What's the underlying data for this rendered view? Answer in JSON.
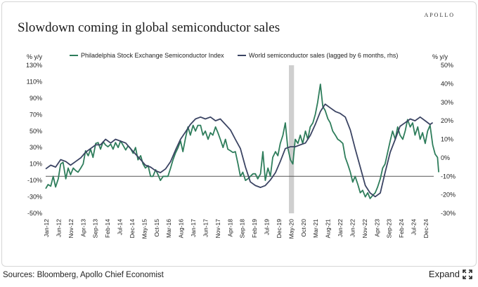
{
  "brand": "APOLLO",
  "source": "Sources: Bloomberg, Apollo Chief Economist",
  "expand_label": "Expand",
  "colors": {
    "sox": "#2e7d5b",
    "wss": "#3b4463",
    "zero_line": "#555555",
    "shade": "#cfcfcf",
    "grid_text": "#222222"
  },
  "chart_data": {
    "type": "line",
    "title": "Slowdown coming in global semiconductor sales",
    "left_axis": {
      "label": "% y/y",
      "min": -50,
      "max": 130,
      "ticks": [
        "130%",
        "110%",
        "90%",
        "70%",
        "50%",
        "30%",
        "10%",
        "-10%",
        "-30%",
        "-50%"
      ]
    },
    "right_axis": {
      "label": "% y/y",
      "min": -30,
      "max": 50,
      "ticks": [
        "50%",
        "40%",
        "30%",
        "20%",
        "10%",
        "0%",
        "-10%",
        "-20%",
        "-30%"
      ]
    },
    "x_ticks": [
      "Jan-12",
      "Jun-12",
      "Nov-12",
      "Apr-13",
      "Sep-13",
      "Feb-14",
      "Jul-14",
      "Dec-14",
      "May-15",
      "Oct-15",
      "Mar-16",
      "Aug-16",
      "Jan-17",
      "Jun-17",
      "Nov-17",
      "Apr-18",
      "Sep-18",
      "Feb-19",
      "Jul-19",
      "Dec-19",
      "May-20",
      "Oct-20",
      "Mar-21",
      "Aug-21",
      "Jan-22",
      "Jun-22",
      "Nov-22",
      "Apr-23",
      "Sep-23",
      "Feb-24",
      "Jul-24",
      "Dec-24"
    ],
    "x_range": [
      2012.0,
      2025.0
    ],
    "recession_shading": [
      2020.12,
      2020.29
    ],
    "series": [
      {
        "name": "Philadelphia Stock Exchange Semiconductor Index",
        "axis": "left",
        "points": [
          [
            2012.0,
            -20
          ],
          [
            2012.08,
            -15
          ],
          [
            2012.17,
            -17
          ],
          [
            2012.25,
            -5
          ],
          [
            2012.33,
            -18
          ],
          [
            2012.42,
            -8
          ],
          [
            2012.5,
            10
          ],
          [
            2012.58,
            12
          ],
          [
            2012.67,
            -8
          ],
          [
            2012.75,
            5
          ],
          [
            2012.83,
            -3
          ],
          [
            2012.92,
            5
          ],
          [
            2013.0,
            2
          ],
          [
            2013.08,
            0
          ],
          [
            2013.17,
            5
          ],
          [
            2013.25,
            10
          ],
          [
            2013.33,
            26
          ],
          [
            2013.42,
            20
          ],
          [
            2013.5,
            28
          ],
          [
            2013.58,
            18
          ],
          [
            2013.67,
            35
          ],
          [
            2013.75,
            36
          ],
          [
            2013.83,
            28
          ],
          [
            2013.92,
            37
          ],
          [
            2014.0,
            33
          ],
          [
            2014.08,
            31
          ],
          [
            2014.17,
            34
          ],
          [
            2014.25,
            28
          ],
          [
            2014.33,
            36
          ],
          [
            2014.42,
            30
          ],
          [
            2014.5,
            38
          ],
          [
            2014.58,
            33
          ],
          [
            2014.67,
            27
          ],
          [
            2014.75,
            32
          ],
          [
            2014.83,
            29
          ],
          [
            2014.92,
            23
          ],
          [
            2015.0,
            30
          ],
          [
            2015.08,
            15
          ],
          [
            2015.17,
            20
          ],
          [
            2015.25,
            10
          ],
          [
            2015.33,
            5
          ],
          [
            2015.42,
            8
          ],
          [
            2015.5,
            -5
          ],
          [
            2015.58,
            -5
          ],
          [
            2015.67,
            3
          ],
          [
            2015.75,
            -3
          ],
          [
            2015.83,
            -10
          ],
          [
            2015.92,
            -5
          ],
          [
            2016.0,
            -5
          ],
          [
            2016.08,
            -5
          ],
          [
            2016.17,
            5
          ],
          [
            2016.25,
            15
          ],
          [
            2016.33,
            23
          ],
          [
            2016.42,
            30
          ],
          [
            2016.5,
            38
          ],
          [
            2016.58,
            25
          ],
          [
            2016.67,
            42
          ],
          [
            2016.75,
            55
          ],
          [
            2016.83,
            45
          ],
          [
            2016.92,
            57
          ],
          [
            2017.0,
            50
          ],
          [
            2017.08,
            57
          ],
          [
            2017.17,
            57
          ],
          [
            2017.25,
            45
          ],
          [
            2017.33,
            50
          ],
          [
            2017.42,
            40
          ],
          [
            2017.5,
            48
          ],
          [
            2017.58,
            45
          ],
          [
            2017.67,
            55
          ],
          [
            2017.75,
            48
          ],
          [
            2017.83,
            40
          ],
          [
            2017.92,
            30
          ],
          [
            2018.0,
            40
          ],
          [
            2018.08,
            28
          ],
          [
            2018.17,
            26
          ],
          [
            2018.25,
            24
          ],
          [
            2018.33,
            25
          ],
          [
            2018.42,
            10
          ],
          [
            2018.5,
            -5
          ],
          [
            2018.58,
            0
          ],
          [
            2018.67,
            -10
          ],
          [
            2018.75,
            -8
          ],
          [
            2018.83,
            -5
          ],
          [
            2018.92,
            -2
          ],
          [
            2019.0,
            -2
          ],
          [
            2019.08,
            -8
          ],
          [
            2019.17,
            -2
          ],
          [
            2019.25,
            25
          ],
          [
            2019.33,
            -10
          ],
          [
            2019.42,
            5
          ],
          [
            2019.5,
            -5
          ],
          [
            2019.58,
            18
          ],
          [
            2019.67,
            25
          ],
          [
            2019.75,
            20
          ],
          [
            2019.83,
            35
          ],
          [
            2019.92,
            45
          ],
          [
            2020.0,
            60
          ],
          [
            2020.08,
            30
          ],
          [
            2020.17,
            15
          ],
          [
            2020.25,
            10
          ],
          [
            2020.33,
            40
          ],
          [
            2020.42,
            35
          ],
          [
            2020.5,
            45
          ],
          [
            2020.58,
            35
          ],
          [
            2020.67,
            50
          ],
          [
            2020.75,
            40
          ],
          [
            2020.83,
            55
          ],
          [
            2020.92,
            60
          ],
          [
            2021.0,
            70
          ],
          [
            2021.08,
            85
          ],
          [
            2021.17,
            107
          ],
          [
            2021.25,
            80
          ],
          [
            2021.33,
            75
          ],
          [
            2021.42,
            65
          ],
          [
            2021.5,
            60
          ],
          [
            2021.58,
            50
          ],
          [
            2021.67,
            45
          ],
          [
            2021.75,
            40
          ],
          [
            2021.83,
            38
          ],
          [
            2021.92,
            35
          ],
          [
            2022.0,
            18
          ],
          [
            2022.08,
            10
          ],
          [
            2022.17,
            0
          ],
          [
            2022.25,
            -12
          ],
          [
            2022.33,
            -5
          ],
          [
            2022.42,
            -15
          ],
          [
            2022.5,
            -25
          ],
          [
            2022.58,
            -22
          ],
          [
            2022.67,
            -30
          ],
          [
            2022.75,
            -25
          ],
          [
            2022.83,
            -32
          ],
          [
            2022.92,
            -28
          ],
          [
            2023.0,
            -25
          ],
          [
            2023.08,
            -18
          ],
          [
            2023.17,
            -8
          ],
          [
            2023.25,
            5
          ],
          [
            2023.33,
            10
          ],
          [
            2023.42,
            25
          ],
          [
            2023.5,
            38
          ],
          [
            2023.58,
            50
          ],
          [
            2023.67,
            40
          ],
          [
            2023.75,
            55
          ],
          [
            2023.83,
            45
          ],
          [
            2023.92,
            40
          ],
          [
            2024.0,
            50
          ],
          [
            2024.08,
            64
          ],
          [
            2024.17,
            55
          ],
          [
            2024.25,
            60
          ],
          [
            2024.33,
            45
          ],
          [
            2024.42,
            55
          ],
          [
            2024.5,
            40
          ],
          [
            2024.58,
            48
          ],
          [
            2024.67,
            35
          ],
          [
            2024.75,
            50
          ],
          [
            2024.83,
            57
          ],
          [
            2024.92,
            33
          ],
          [
            2025.0,
            22
          ],
          [
            2025.08,
            18
          ],
          [
            2025.12,
            0
          ]
        ]
      },
      {
        "name": "World semiconductor sales (lagged by 6 months, rhs)",
        "axis": "right",
        "points": [
          [
            2012.0,
            -6
          ],
          [
            2012.17,
            -4
          ],
          [
            2012.33,
            -5
          ],
          [
            2012.5,
            -1
          ],
          [
            2012.67,
            -2
          ],
          [
            2012.83,
            -4
          ],
          [
            2013.0,
            -2
          ],
          [
            2013.17,
            0
          ],
          [
            2013.33,
            3
          ],
          [
            2013.5,
            5
          ],
          [
            2013.67,
            7
          ],
          [
            2013.83,
            7
          ],
          [
            2014.0,
            10
          ],
          [
            2014.17,
            8
          ],
          [
            2014.33,
            10
          ],
          [
            2014.5,
            9
          ],
          [
            2014.67,
            8
          ],
          [
            2014.83,
            5
          ],
          [
            2015.0,
            2
          ],
          [
            2015.17,
            -1
          ],
          [
            2015.33,
            -4
          ],
          [
            2015.5,
            -5
          ],
          [
            2015.67,
            -7
          ],
          [
            2015.83,
            -8
          ],
          [
            2016.0,
            -6
          ],
          [
            2016.17,
            -2
          ],
          [
            2016.33,
            4
          ],
          [
            2016.5,
            10
          ],
          [
            2016.67,
            14
          ],
          [
            2016.83,
            18
          ],
          [
            2017.0,
            21
          ],
          [
            2017.17,
            22
          ],
          [
            2017.33,
            21
          ],
          [
            2017.5,
            22
          ],
          [
            2017.67,
            20
          ],
          [
            2017.83,
            21
          ],
          [
            2018.0,
            18
          ],
          [
            2018.17,
            15
          ],
          [
            2018.33,
            10
          ],
          [
            2018.5,
            5
          ],
          [
            2018.67,
            -5
          ],
          [
            2018.83,
            -13
          ],
          [
            2019.0,
            -15
          ],
          [
            2019.17,
            -16
          ],
          [
            2019.33,
            -15
          ],
          [
            2019.5,
            -12
          ],
          [
            2019.67,
            -8
          ],
          [
            2019.83,
            -2
          ],
          [
            2020.0,
            5
          ],
          [
            2020.17,
            6
          ],
          [
            2020.33,
            6
          ],
          [
            2020.5,
            7
          ],
          [
            2020.67,
            8
          ],
          [
            2020.83,
            12
          ],
          [
            2021.0,
            18
          ],
          [
            2021.17,
            25
          ],
          [
            2021.33,
            29
          ],
          [
            2021.5,
            27
          ],
          [
            2021.67,
            25
          ],
          [
            2021.83,
            24
          ],
          [
            2022.0,
            22
          ],
          [
            2022.17,
            15
          ],
          [
            2022.33,
            5
          ],
          [
            2022.5,
            -5
          ],
          [
            2022.67,
            -15
          ],
          [
            2022.83,
            -19
          ],
          [
            2023.0,
            -21
          ],
          [
            2023.17,
            -19
          ],
          [
            2023.33,
            -8
          ],
          [
            2023.5,
            3
          ],
          [
            2023.67,
            10
          ],
          [
            2023.83,
            17
          ],
          [
            2024.0,
            19
          ],
          [
            2024.17,
            21
          ],
          [
            2024.33,
            20
          ],
          [
            2024.5,
            22
          ],
          [
            2024.67,
            20
          ],
          [
            2024.83,
            18
          ],
          [
            2024.92,
            19
          ]
        ]
      }
    ]
  }
}
